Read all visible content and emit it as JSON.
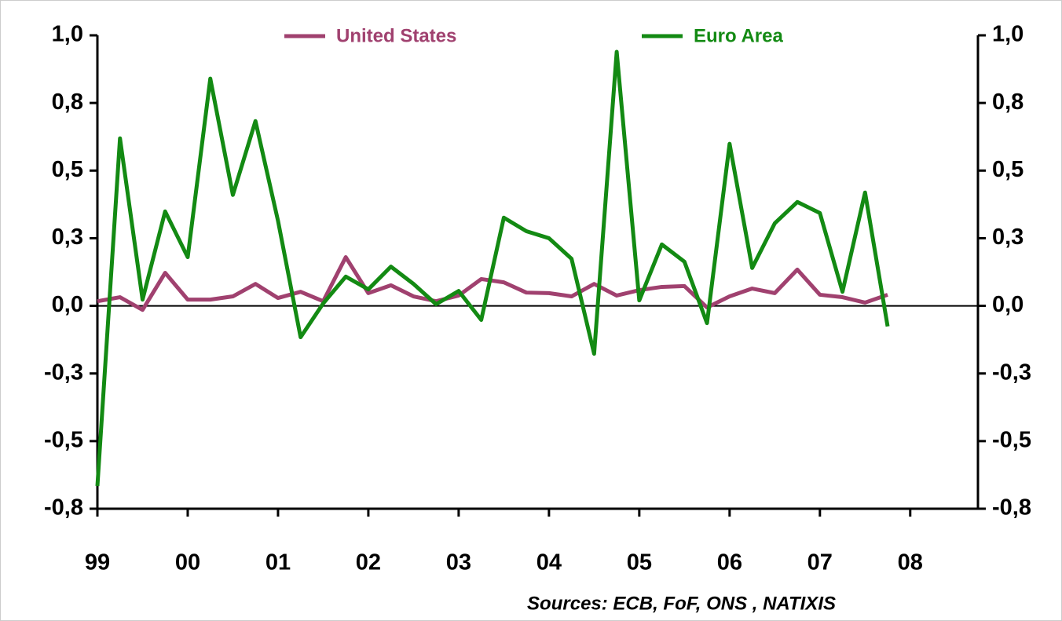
{
  "chart_data": {
    "type": "line",
    "x": [
      1999,
      1999.25,
      1999.5,
      1999.75,
      2000,
      2000.25,
      2000.5,
      2000.75,
      2001,
      2001.25,
      2001.5,
      2001.75,
      2002,
      2002.25,
      2002.5,
      2002.75,
      2003,
      2003.25,
      2003.5,
      2003.75,
      2004,
      2004.25,
      2004.5,
      2004.75,
      2005,
      2005.25,
      2005.5,
      2005.75,
      2006,
      2006.25,
      2006.5,
      2006.75,
      2007,
      2007.25,
      2007.5,
      2007.75
    ],
    "series": [
      {
        "name": "United States",
        "color": "#a0416f",
        "values": [
          0.017,
          0.032,
          -0.015,
          0.122,
          0.023,
          0.023,
          0.035,
          0.081,
          0.029,
          0.052,
          0.017,
          0.18,
          0.047,
          0.076,
          0.035,
          0.017,
          0.038,
          0.099,
          0.087,
          0.049,
          0.047,
          0.035,
          0.081,
          0.038,
          0.058,
          0.07,
          0.073,
          -0.006,
          0.035,
          0.064,
          0.047,
          0.134,
          0.041,
          0.032,
          0.012,
          0.041
        ]
      },
      {
        "name": "Euro Area",
        "color": "#138a13",
        "values": [
          -0.666,
          0.619,
          0.023,
          0.349,
          0.18,
          0.84,
          0.41,
          0.683,
          0.314,
          -0.116,
          0.009,
          0.108,
          0.061,
          0.145,
          0.081,
          0.006,
          0.055,
          -0.052,
          0.326,
          0.276,
          0.25,
          0.174,
          -0.177,
          0.939,
          0.02,
          0.227,
          0.163,
          -0.064,
          0.599,
          0.14,
          0.305,
          0.384,
          0.343,
          0.052,
          0.419,
          -0.076
        ]
      }
    ],
    "xlim": [
      1999,
      2008.75
    ],
    "xticks": [
      {
        "value": 1999,
        "label": "99"
      },
      {
        "value": 2000,
        "label": "00"
      },
      {
        "value": 2001,
        "label": "01"
      },
      {
        "value": 2002,
        "label": "02"
      },
      {
        "value": 2003,
        "label": "03"
      },
      {
        "value": 2004,
        "label": "04"
      },
      {
        "value": 2005,
        "label": "05"
      },
      {
        "value": 2006,
        "label": "06"
      },
      {
        "value": 2007,
        "label": "07"
      },
      {
        "value": 2008,
        "label": "08"
      }
    ],
    "ylim": [
      -0.75,
      1.0
    ],
    "yticks": [
      {
        "value": 1.0,
        "label": "1,0"
      },
      {
        "value": 0.75,
        "label": "0,8"
      },
      {
        "value": 0.5,
        "label": "0,5"
      },
      {
        "value": 0.25,
        "label": "0,3"
      },
      {
        "value": 0,
        "label": "0,0"
      },
      {
        "value": -0.25,
        "label": "-0,3"
      },
      {
        "value": -0.5,
        "label": "-0,5"
      },
      {
        "value": -0.75,
        "label": "-0,8"
      }
    ],
    "y2lim": [
      -0.75,
      1.0
    ],
    "y2ticks": [
      {
        "value": 1.0,
        "label": "1,0"
      },
      {
        "value": 0.75,
        "label": "0,8"
      },
      {
        "value": 0.5,
        "label": "0,5"
      },
      {
        "value": 0.25,
        "label": "0,3"
      },
      {
        "value": 0,
        "label": "0,0"
      },
      {
        "value": -0.25,
        "label": "-0,3"
      },
      {
        "value": -0.5,
        "label": "-0,5"
      },
      {
        "value": -0.75,
        "label": "-0,8"
      }
    ],
    "source": "Sources: ECB, FoF, ONS , NATIXIS"
  }
}
